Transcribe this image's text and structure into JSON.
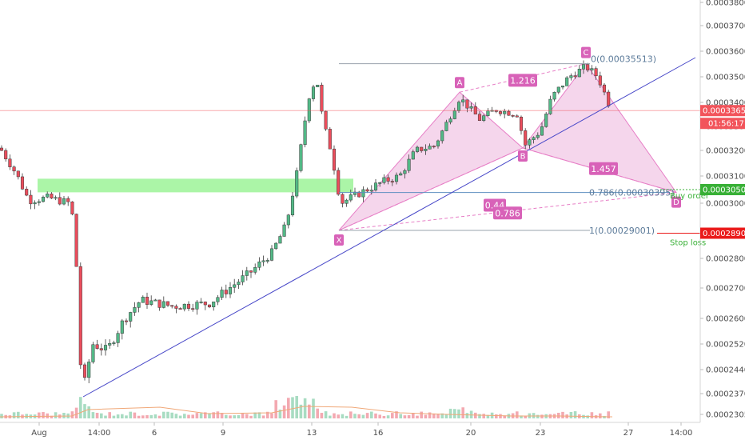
{
  "chart_data": {
    "type": "candlestick",
    "y_axis_ticks": [
      "0.00038000",
      "0.00037000",
      "0.00036000",
      "0.00035000",
      "0.00034000",
      "0.00033000",
      "0.00032000",
      "0.00031000",
      "0.00030000",
      "0.00029000",
      "0.00028000",
      "0.00027000",
      "0.00026000",
      "0.00025200",
      "0.00024400",
      "0.00023700",
      "0.00023050"
    ],
    "x_axis_ticks": [
      "Aug",
      "14:00",
      "6",
      "9",
      "13",
      "16",
      "20",
      "23",
      "27",
      "14:00"
    ],
    "current_price": "0.00033659",
    "countdown": "01:56:17",
    "buy_order": {
      "price": "0.00030500",
      "label": "Buy order"
    },
    "stop_loss": {
      "price": "0.00028900",
      "label": "Stop loss"
    },
    "fib_levels": [
      {
        "level": "0",
        "price": "0.00035513",
        "text": "0(0.00035513)"
      },
      {
        "level": "0.786",
        "price": "0.00030395",
        "text": "0.786(0.00030395)"
      },
      {
        "level": "1",
        "price": "0.00029001",
        "text": "1(0.00029001)"
      }
    ],
    "pattern_points": [
      {
        "name": "X",
        "value": 0.00029001
      },
      {
        "name": "A",
        "value": 0.000344
      },
      {
        "name": "B",
        "value": 0.000321
      },
      {
        "name": "C",
        "value": 0.00035513
      },
      {
        "name": "D",
        "value": 0.00030395
      }
    ],
    "ratios": [
      "1.216",
      "0.44",
      "1.457",
      "0.786"
    ],
    "support_zone": {
      "from": 0.000304,
      "to": 0.000309
    },
    "colors": {
      "up": "#53b987",
      "down": "#eb4d5c",
      "pattern_fill": "#f1c8e6",
      "pattern_stroke": "#e77ec6",
      "label_bg": "#d862b8",
      "trendline": "#4747c8",
      "zone": "#8ff28a",
      "current_price": "#f2545b",
      "buy": "#38b036",
      "stop": "#ea1a1a"
    }
  }
}
